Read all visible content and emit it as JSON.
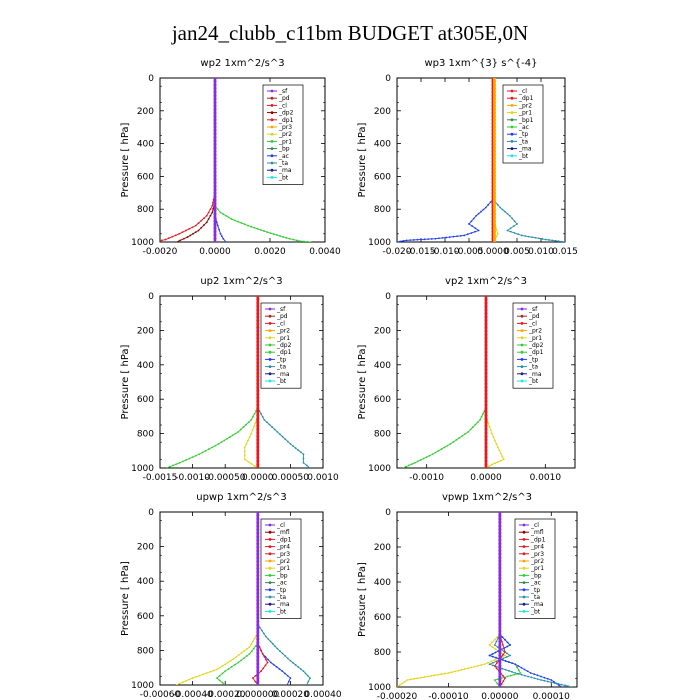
{
  "title": "jan24_clubb_c11bm  BUDGET at305E,0N",
  "colors": {
    "purple": "#8a2be2",
    "brown": "#a52a2a",
    "red": "#e8191f",
    "darkred": "#8b0000",
    "orange": "#ffa500",
    "yellow": "#e6d21a",
    "green": "#32cd32",
    "darkgreen": "#2e8b57",
    "blue": "#1e3cff",
    "teal": "#2a8fa8",
    "navy": "#1a1a8c",
    "cyan": "#19e6e6"
  },
  "chart_data": [
    {
      "type": "line",
      "title": "wp2   1xm^2/s^3",
      "ylabel": "Pressure  [ hPa]",
      "xlim": [
        -0.002,
        0.004
      ],
      "xticks": [
        -0.002,
        0.0,
        0.002,
        0.004
      ],
      "xtick_labels": [
        "-0.0020",
        "0.0000",
        "0.0020",
        "0.0040"
      ],
      "ylim": [
        1000,
        0
      ],
      "yticks": [
        0,
        200,
        400,
        600,
        800,
        1000
      ],
      "legend": [
        "_sf",
        "_pd",
        "_cl",
        "_dp2",
        "_dp1",
        "_pr3",
        "_pr2",
        "_pr1",
        "_bp",
        "_ac",
        "_ta",
        "_ma",
        "_bt"
      ],
      "legend_colors": [
        "#8a2be2",
        "#a52a2a",
        "#e8191f",
        "#8b0000",
        "#e8191f",
        "#ffa500",
        "#e6d21a",
        "#32cd32",
        "#2e8b57",
        "#1e3cff",
        "#2a8fa8",
        "#1a1a8c",
        "#19e6e6"
      ],
      "legend_position": "top-right",
      "series": [
        {
          "legend_index": 2,
          "x": [
            0.0,
            0.0,
            -0.0001,
            -0.0003,
            -0.0007,
            -0.0013,
            -0.0018,
            -0.0022
          ],
          "y": [
            0,
            700,
            780,
            840,
            900,
            950,
            985,
            1000
          ]
        },
        {
          "legend_index": 3,
          "x": [
            0.0,
            0.0,
            -0.0001,
            -0.0003,
            -0.0006,
            -0.001,
            -0.0014
          ],
          "y": [
            0,
            750,
            820,
            880,
            930,
            970,
            1000
          ]
        },
        {
          "legend_index": 7,
          "x": [
            0.0,
            0.0,
            0.0002,
            0.0006,
            0.0012,
            0.0019,
            0.0026,
            0.0031,
            0.0035
          ],
          "y": [
            0,
            780,
            820,
            860,
            900,
            940,
            975,
            995,
            1000
          ]
        },
        {
          "legend_index": 9,
          "x": [
            0.0,
            0.0,
            0.0001,
            0.0002,
            0.0003,
            0.0004
          ],
          "y": [
            0,
            840,
            900,
            950,
            980,
            1000
          ]
        },
        {
          "legend_index": 0,
          "x": [
            0.0,
            0.0
          ],
          "y": [
            0,
            1000
          ]
        }
      ]
    },
    {
      "type": "line",
      "title": "wp3   1xm^{3} s^{-4}",
      "ylabel": "Pressure  [ hPa]",
      "xlim": [
        -0.02,
        0.015
      ],
      "xticks": [
        -0.02,
        -0.015,
        -0.01,
        -0.005,
        0.0,
        0.005,
        0.01,
        0.015
      ],
      "xtick_labels": [
        "-0.020",
        "-0.015",
        "-0.010",
        "-0.005",
        "0.0000",
        "0.005",
        "0.010",
        "0.015"
      ],
      "ylim": [
        1000,
        0
      ],
      "yticks": [
        0,
        200,
        400,
        600,
        800,
        1000
      ],
      "legend": [
        "_cl",
        "_dp1",
        "_pr2",
        "_pr1",
        "_bp1",
        "_ac",
        "_tp",
        "_ta",
        "_ma",
        "_bt"
      ],
      "legend_colors": [
        "#e8191f",
        "#e8191f",
        "#ffa500",
        "#e6d21a",
        "#2e8b57",
        "#32cd32",
        "#1e3cff",
        "#2a8fa8",
        "#1a1a8c",
        "#19e6e6"
      ],
      "legend_position": "top-right",
      "series": [
        {
          "legend_index": 6,
          "x": [
            0.0,
            0.0,
            -0.0015,
            -0.0035,
            -0.005,
            -0.003,
            -0.006,
            -0.012,
            -0.018,
            -0.02
          ],
          "y": [
            0,
            740,
            790,
            840,
            890,
            930,
            960,
            980,
            990,
            1000
          ]
        },
        {
          "legend_index": 7,
          "x": [
            0.0,
            0.0,
            0.0015,
            0.0035,
            0.005,
            0.003,
            0.006,
            0.011,
            0.015
          ],
          "y": [
            0,
            740,
            790,
            840,
            890,
            930,
            960,
            985,
            1000
          ]
        },
        {
          "legend_index": 3,
          "x": [
            0.0,
            0.0,
            0.0005,
            0.001,
            0.0005,
            0.0
          ],
          "y": [
            0,
            850,
            900,
            950,
            980,
            1000
          ]
        },
        {
          "legend_index": 0,
          "x": [
            0.0,
            0.0
          ],
          "y": [
            0,
            1000
          ]
        },
        {
          "legend_index": 2,
          "x": [
            0.0003,
            0.0003
          ],
          "y": [
            0,
            1000
          ]
        }
      ]
    },
    {
      "type": "line",
      "title": "up2   1xm^2/s^3",
      "ylabel": "Pressure  [ hPa]",
      "xlim": [
        -0.0015,
        0.001
      ],
      "xticks": [
        -0.0015,
        -0.001,
        -0.0005,
        0.0,
        0.0005,
        0.001
      ],
      "xtick_labels": [
        "-0.0015",
        "-0.0010",
        "-0.00050",
        "0.0000",
        "0.00050",
        "0.0010"
      ],
      "ylim": [
        1000,
        0
      ],
      "yticks": [
        0,
        200,
        400,
        600,
        800,
        1000
      ],
      "legend": [
        "_sf",
        "_pd",
        "_cl",
        "_pr2",
        "_pr1",
        "_dp2",
        "_dp1",
        "_tp",
        "_ta",
        "_ma",
        "_bt"
      ],
      "legend_colors": [
        "#8a2be2",
        "#a52a2a",
        "#e8191f",
        "#ffa500",
        "#e6d21a",
        "#32cd32",
        "#32cd32",
        "#1e3cff",
        "#2a8fa8",
        "#1a1a8c",
        "#19e6e6"
      ],
      "legend_position": "top-right",
      "series": [
        {
          "legend_index": 5,
          "x": [
            0.0,
            -0.0001,
            -0.0003,
            -0.0006,
            -0.0009,
            -0.0012,
            -0.0014
          ],
          "y": [
            650,
            720,
            790,
            860,
            920,
            970,
            1000
          ]
        },
        {
          "legend_index": 8,
          "x": [
            0.0,
            0.0001,
            0.0003,
            0.0005,
            0.0007,
            0.0007,
            0.0008
          ],
          "y": [
            650,
            720,
            790,
            860,
            920,
            970,
            1000
          ]
        },
        {
          "legend_index": 4,
          "x": [
            0.0,
            -0.0001,
            -0.0002,
            -0.0002,
            0.0
          ],
          "y": [
            700,
            800,
            880,
            950,
            1000
          ]
        },
        {
          "legend_index": 2,
          "x": [
            0.0,
            0.0
          ],
          "y": [
            0,
            1000
          ]
        }
      ]
    },
    {
      "type": "line",
      "title": "vp2   1xm^2/s^3",
      "ylabel": "Pressure  [ hPa]",
      "xlim": [
        -0.0015,
        0.0015
      ],
      "xticks": [
        -0.001,
        0.0,
        0.001
      ],
      "xtick_labels": [
        "-0.0010",
        "0.0000",
        "0.0010"
      ],
      "ylim": [
        1000,
        0
      ],
      "yticks": [
        0,
        200,
        400,
        600,
        800,
        1000
      ],
      "legend": [
        "_sf",
        "_pd",
        "_cl",
        "_pr2",
        "_pr1",
        "_dp2",
        "_dp1",
        "_tp",
        "_ta",
        "_ma",
        "_bt"
      ],
      "legend_colors": [
        "#8a2be2",
        "#a52a2a",
        "#e8191f",
        "#ffa500",
        "#e6d21a",
        "#32cd32",
        "#32cd32",
        "#1e3cff",
        "#2a8fa8",
        "#1a1a8c",
        "#19e6e6"
      ],
      "legend_position": "top-right",
      "series": [
        {
          "legend_index": 5,
          "x": [
            0.0,
            -0.0001,
            -0.0003,
            -0.0006,
            -0.0009,
            -0.0012,
            -0.0014
          ],
          "y": [
            650,
            720,
            790,
            860,
            920,
            970,
            1000
          ]
        },
        {
          "legend_index": 4,
          "x": [
            0.0,
            0.0001,
            0.0002,
            0.0003,
            0.0001,
            0.0
          ],
          "y": [
            700,
            800,
            880,
            950,
            980,
            1000
          ]
        },
        {
          "legend_index": 2,
          "x": [
            0.0,
            0.0
          ],
          "y": [
            0,
            1000
          ]
        }
      ]
    },
    {
      "type": "line",
      "title": "upwp   1xm^2/s^3",
      "ylabel": "Pressure  [ hPa]",
      "xlim": [
        -0.0006,
        0.0004
      ],
      "xticks": [
        -0.0006,
        -0.0004,
        -0.0002,
        0.0,
        0.0002,
        0.0004
      ],
      "xtick_labels": [
        "-0.00060",
        "-0.00040",
        "-0.00020",
        "0.000000",
        "0.00020",
        "0.00040"
      ],
      "ylim": [
        1000,
        0
      ],
      "yticks": [
        0,
        200,
        400,
        600,
        800,
        1000
      ],
      "legend": [
        "_cl",
        "_mfl",
        "_dp1",
        "_pr4",
        "_pr3",
        "_pr2",
        "_pr1",
        "_bp",
        "_ac",
        "_tp",
        "_ta",
        "_ma",
        "_bt"
      ],
      "legend_colors": [
        "#8a2be2",
        "#8b0000",
        "#e8191f",
        "#e8191f",
        "#e8191f",
        "#ffa500",
        "#e6d21a",
        "#32cd32",
        "#2e8b57",
        "#1e3cff",
        "#2a8fa8",
        "#1a1a8c",
        "#19e6e6"
      ],
      "legend_position": "top-right",
      "series": [
        {
          "legend_index": 6,
          "x": [
            0.0,
            -5e-05,
            -0.00015,
            -0.00025,
            -0.0004,
            -0.0005
          ],
          "y": [
            700,
            780,
            850,
            910,
            960,
            1000
          ]
        },
        {
          "legend_index": 7,
          "x": [
            0.0,
            -5e-05,
            -0.00012,
            -0.0002,
            -0.00025,
            -0.0002
          ],
          "y": [
            760,
            820,
            870,
            920,
            960,
            1000
          ]
        },
        {
          "legend_index": 10,
          "x": [
            0.0,
            5e-05,
            0.00012,
            0.0002,
            0.00028,
            0.00032,
            0.0003
          ],
          "y": [
            650,
            720,
            790,
            860,
            920,
            960,
            1000
          ]
        },
        {
          "legend_index": 9,
          "x": [
            0.0,
            3e-05,
            8e-05,
            0.00015,
            0.0002,
            0.00018
          ],
          "y": [
            760,
            820,
            870,
            920,
            960,
            1000
          ]
        },
        {
          "legend_index": 2,
          "x": [
            0.0,
            3e-05,
            6e-05,
            2e-05,
            -3e-05,
            0.0
          ],
          "y": [
            760,
            820,
            870,
            920,
            960,
            1000
          ]
        },
        {
          "legend_index": 0,
          "x": [
            0.0,
            0.0
          ],
          "y": [
            0,
            1000
          ]
        }
      ]
    },
    {
      "type": "line",
      "title": "vpwp   1xm^2/s^3",
      "ylabel": "Pressure  [ hPa]",
      "xlim": [
        -0.0002,
        0.00015
      ],
      "xticks": [
        -0.0002,
        -0.0001,
        0.0,
        0.0001
      ],
      "xtick_labels": [
        "-0.00020",
        "-0.00010",
        "0.00000",
        "0.00010"
      ],
      "ylim": [
        1000,
        0
      ],
      "yticks": [
        0,
        200,
        400,
        600,
        800,
        1000
      ],
      "legend": [
        "_cl",
        "_mfl",
        "_dp1",
        "_pr4",
        "_pr3",
        "_pr2",
        "_pr1",
        "_bp",
        "_ac",
        "_tp",
        "_ta",
        "_ma",
        "_bt"
      ],
      "legend_colors": [
        "#8a2be2",
        "#8b0000",
        "#e8191f",
        "#e8191f",
        "#e8191f",
        "#ffa500",
        "#e6d21a",
        "#32cd32",
        "#2e8b57",
        "#1e3cff",
        "#2a8fa8",
        "#1a1a8c",
        "#19e6e6"
      ],
      "legend_position": "top-right",
      "series": [
        {
          "legend_index": 6,
          "x": [
            0.0,
            -2e-05,
            1e-05,
            -3e-05,
            -0.0001,
            -0.00018,
            -0.0002
          ],
          "y": [
            700,
            760,
            820,
            870,
            920,
            960,
            1000
          ]
        },
        {
          "legend_index": 7,
          "x": [
            0.0,
            2e-05,
            -2e-05,
            3e-05,
            4e-05,
            -1e-05,
            0.0
          ],
          "y": [
            700,
            760,
            820,
            870,
            920,
            960,
            1000
          ]
        },
        {
          "legend_index": 9,
          "x": [
            0.0,
            2e-05,
            -2e-05,
            3e-05,
            6e-05,
            0.0001,
            0.00012
          ],
          "y": [
            700,
            760,
            820,
            870,
            920,
            960,
            1000
          ]
        },
        {
          "legend_index": 10,
          "x": [
            0.0,
            -1e-05,
            2e-05,
            -2e-05,
            3e-05,
            8e-05,
            0.00014
          ],
          "y": [
            700,
            760,
            820,
            870,
            920,
            960,
            1000
          ]
        },
        {
          "legend_index": 2,
          "x": [
            0.0,
            1e-05,
            -1e-05,
            1e-05,
            0.0
          ],
          "y": [
            700,
            800,
            880,
            950,
            1000
          ]
        },
        {
          "legend_index": 0,
          "x": [
            0.0,
            0.0
          ],
          "y": [
            0,
            1000
          ]
        }
      ]
    }
  ]
}
